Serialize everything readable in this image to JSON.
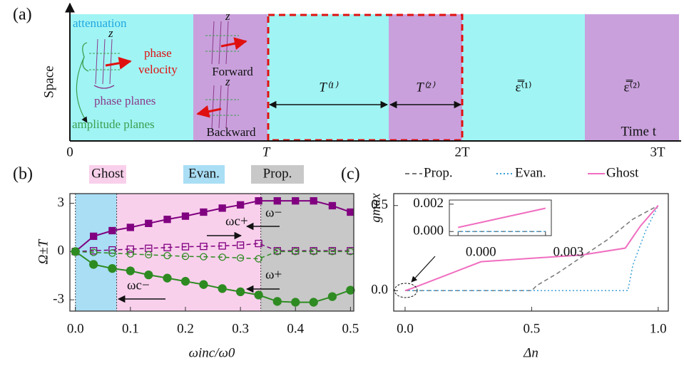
{
  "panel_a": {
    "label": "(a)",
    "ylabel": "Space",
    "attenuation": "attenuation",
    "z": "z",
    "phase": "phase",
    "velocity": "velocity",
    "phase_planes": "phase planes",
    "amplitude_planes": "amplitude planes",
    "forward": "Forward",
    "backward": "Backward",
    "time": "Time  t",
    "ticks": [
      "0",
      "T",
      "2T",
      "3T"
    ],
    "segments": [
      "T⁽¹⁾",
      "T⁽²⁾",
      "ε̿⁽¹⁾",
      "ε̿⁽²⁾"
    ]
  },
  "chart_data": [
    {
      "type": "line",
      "label": "(b)",
      "xlabel": "ωinc/ω0",
      "ylabel": "Ω±T",
      "xlim": [
        -0.01,
        0.506
      ],
      "ylim": [
        -3.7,
        3.6
      ],
      "xticks": [
        {
          "value": 0,
          "label": "0.0"
        },
        {
          "value": 0.1,
          "label": "0.1"
        },
        {
          "value": 0.2,
          "label": "0.2"
        },
        {
          "value": 0.3,
          "label": "0.3"
        },
        {
          "value": 0.4,
          "label": "0.4"
        },
        {
          "value": 0.5,
          "label": "0.5"
        }
      ],
      "yticks": [
        -3,
        0,
        3
      ],
      "regions": [
        {
          "name": "Evan.",
          "color": "#a9def5",
          "range": [
            0,
            0.075
          ]
        },
        {
          "name": "Ghost",
          "color": "#f9d0ec",
          "range": [
            0.075,
            0.337
          ]
        },
        {
          "name": "Prop.",
          "color": "#c8c8c8",
          "range": [
            0.337,
            0.506
          ]
        }
      ],
      "annotations": [
        "ωc+",
        "ω−",
        "ω+",
        "ωc−"
      ],
      "x": [
        0,
        0.033,
        0.067,
        0.1,
        0.133,
        0.167,
        0.2,
        0.233,
        0.267,
        0.3,
        0.333,
        0.367,
        0.4,
        0.433,
        0.467,
        0.5
      ],
      "series": [
        {
          "color": "#800080",
          "marker": "square",
          "filled": true,
          "dash": "solid",
          "values": [
            0,
            0.95,
            1.3,
            1.5,
            1.75,
            2.0,
            2.2,
            2.45,
            2.7,
            2.9,
            3.15,
            3.15,
            3.15,
            3.15,
            2.85,
            2.45
          ]
        },
        {
          "color": "#800080",
          "marker": "square",
          "filled": false,
          "dash": "dashed",
          "values": [
            0,
            0.05,
            0.1,
            0.15,
            0.2,
            0.25,
            0.3,
            0.32,
            0.35,
            0.4,
            0.5,
            0.05,
            0.05,
            0.05,
            0.05,
            0.05
          ]
        },
        {
          "color": "#2e8b22",
          "marker": "circle",
          "filled": false,
          "dash": "dashed",
          "values": [
            0,
            -0.05,
            -0.1,
            -0.15,
            -0.2,
            -0.25,
            -0.3,
            -0.32,
            -0.35,
            -0.4,
            -0.45,
            0,
            0,
            0,
            0,
            0
          ]
        },
        {
          "color": "#2e8b22",
          "marker": "circle",
          "filled": true,
          "dash": "solid",
          "values": [
            0,
            -0.8,
            -1.05,
            -1.2,
            -1.45,
            -1.65,
            -1.85,
            -2.05,
            -2.3,
            -2.5,
            -2.7,
            -3.1,
            -3.15,
            -3.15,
            -2.8,
            -2.4
          ]
        }
      ]
    },
    {
      "type": "line",
      "label": "(c)",
      "xlabel": "Δn",
      "ylabel": "gmax",
      "xlim": [
        -0.045,
        1.04
      ],
      "ylim": [
        -0.12,
        0.57
      ],
      "xticks": [
        {
          "value": 0,
          "label": "0.0"
        },
        {
          "value": 0.5,
          "label": "0.5"
        },
        {
          "value": 1,
          "label": "1.0"
        }
      ],
      "yticks": [
        {
          "value": 0,
          "label": "0.0"
        },
        {
          "value": 0.5,
          "label": "0.5"
        }
      ],
      "series": [
        {
          "name": "Prop.",
          "color": "#777777",
          "dash": "dashed",
          "x": [
            0,
            0.5,
            0.52,
            0.6,
            0.7,
            0.8,
            0.9,
            1
          ],
          "values": [
            0,
            0,
            0.03,
            0.1,
            0.2,
            0.3,
            0.42,
            0.5
          ]
        },
        {
          "name": "Evan.",
          "color": "#3aa0d8",
          "dash": "dotted",
          "x": [
            0,
            0.88,
            0.9,
            0.95,
            1
          ],
          "values": [
            0,
            0,
            0.15,
            0.35,
            0.5
          ]
        },
        {
          "name": "Ghost",
          "color": "#f06ec0",
          "dash": "solid",
          "x": [
            0,
            0.03,
            0.3,
            0.7,
            0.87,
            0.93,
            1
          ],
          "values": [
            0,
            0.015,
            0.17,
            0.21,
            0.25,
            0.38,
            0.5
          ]
        }
      ]
    },
    {
      "type": "line",
      "xlim": [
        -0.0003,
        0.0032
      ],
      "ylim": [
        -0.0003,
        0.0023
      ],
      "xticks": [
        {
          "value": 0,
          "label": "0.000"
        },
        {
          "value": 0.003,
          "label": "0.003"
        }
      ],
      "yticks": [
        {
          "value": 0,
          "label": "0.000"
        },
        {
          "value": 0.002,
          "label": "0.002"
        }
      ],
      "series": [
        {
          "color": "#777777",
          "dash": "dashed",
          "x": [
            0,
            0.003
          ],
          "values": [
            0,
            0
          ]
        },
        {
          "color": "#3aa0d8",
          "dash": "dotted",
          "x": [
            0,
            0.003
          ],
          "values": [
            0,
            0
          ]
        },
        {
          "color": "#f06ec0",
          "dash": "solid",
          "x": [
            0,
            0.003
          ],
          "values": [
            0.0003,
            0.0017
          ]
        }
      ]
    }
  ]
}
